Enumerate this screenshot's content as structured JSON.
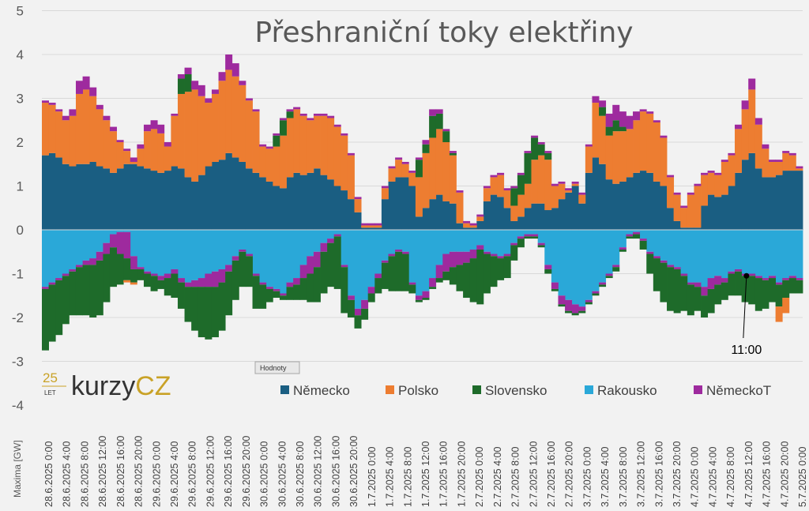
{
  "chart_data": {
    "type": "bar",
    "stacked": true,
    "title": "Přeshraniční toky elektřiny",
    "ylabel": "Maxima [GW]",
    "ylim": [
      -4,
      5
    ],
    "yticks": [
      -4,
      -3,
      -2,
      -1,
      0,
      1,
      2,
      3,
      4,
      5
    ],
    "grid": true,
    "legend_position": "bottom-right",
    "field_button": "Hodnoty",
    "annotation": {
      "text": "11:00",
      "x": "4.7.2025 11:00",
      "y": -1.05
    },
    "x_tick_labels": [
      "28.6.2025 0:00",
      "28.6.2025 4:00",
      "28.6.2025 8:00",
      "28.6.2025 12:00",
      "28.6.2025 16:00",
      "28.6.2025 20:00",
      "29.6.2025 0:00",
      "29.6.2025 4:00",
      "29.6.2025 8:00",
      "29.6.2025 12:00",
      "29.6.2025 16:00",
      "29.6.2025 20:00",
      "30.6.2025 0:00",
      "30.6.2025 4:00",
      "30.6.2025 8:00",
      "30.6.2025 12:00",
      "30.6.2025 16:00",
      "30.6.2025 20:00",
      "1.7.2025 0:00",
      "1.7.2025 4:00",
      "1.7.2025 8:00",
      "1.7.2025 12:00",
      "1.7.2025 16:00",
      "1.7.2025 20:00",
      "2.7.2025 0:00",
      "2.7.2025 4:00",
      "2.7.2025 8:00",
      "2.7.2025 12:00",
      "2.7.2025 16:00",
      "2.7.2025 20:00",
      "3.7.2025 0:00",
      "3.7.2025 4:00",
      "3.7.2025 8:00",
      "3.7.2025 12:00",
      "3.7.2025 16:00",
      "3.7.2025 20:00",
      "4.7.2025 0:00",
      "4.7.2025 4:00",
      "4.7.2025 8:00",
      "4.7.2025 12:00",
      "4.7.2025 16:00",
      "4.7.2025 20:00",
      "5.7.2025 0:00"
    ],
    "series": [
      {
        "name": "Německo",
        "color": "#1a5e82",
        "values": [
          1.7,
          1.75,
          1.65,
          1.5,
          1.45,
          1.5,
          1.5,
          1.55,
          1.45,
          1.4,
          1.3,
          1.4,
          1.5,
          1.5,
          1.45,
          1.4,
          1.35,
          1.3,
          1.35,
          1.45,
          1.4,
          1.2,
          1.1,
          1.25,
          1.45,
          1.55,
          1.6,
          1.75,
          1.65,
          1.55,
          1.4,
          1.3,
          1.2,
          1.1,
          1.0,
          0.95,
          1.2,
          1.3,
          1.25,
          1.3,
          1.4,
          1.25,
          1.15,
          1.0,
          0.9,
          0.7,
          0.4,
          0.05,
          0.05,
          0.05,
          0.7,
          1.1,
          1.2,
          1.2,
          1.0,
          0.3,
          0.5,
          0.7,
          0.8,
          0.65,
          0.6,
          0.15,
          0.05,
          0.05,
          0.2,
          0.65,
          0.8,
          0.75,
          0.5,
          0.2,
          0.3,
          0.5,
          0.6,
          0.6,
          0.45,
          0.5,
          0.7,
          0.85,
          1.0,
          0.6,
          1.3,
          1.65,
          1.5,
          1.15,
          1.05,
          1.1,
          1.2,
          1.3,
          1.35,
          1.3,
          1.1,
          1.0,
          0.5,
          0.2,
          0.05,
          0.05,
          0.05,
          0.55,
          0.8,
          0.75,
          0.8,
          1.0,
          1.3,
          1.6,
          1.75,
          1.4,
          1.2,
          1.2,
          1.25,
          1.35,
          1.35,
          1.35
        ]
      },
      {
        "name": "Polsko",
        "color": "#ed7d31",
        "values": [
          1.2,
          1.1,
          1.05,
          1.0,
          1.15,
          1.6,
          1.7,
          1.5,
          1.3,
          1.1,
          0.95,
          0.6,
          0.3,
          0.05,
          0.4,
          0.85,
          0.95,
          0.9,
          0.55,
          1.15,
          1.7,
          1.95,
          2.1,
          1.8,
          1.45,
          1.55,
          1.8,
          1.9,
          1.85,
          1.75,
          1.55,
          1.4,
          0.7,
          0.75,
          0.9,
          1.2,
          1.35,
          1.45,
          1.35,
          1.2,
          1.2,
          1.35,
          1.4,
          1.35,
          1.25,
          1.0,
          0.3,
          0.05,
          0.05,
          0.05,
          0.25,
          0.3,
          0.4,
          0.3,
          0.3,
          0.9,
          1.25,
          1.4,
          1.5,
          1.35,
          1.1,
          0.7,
          0.1,
          0.05,
          0.1,
          0.3,
          0.4,
          0.5,
          0.4,
          0.35,
          0.5,
          0.55,
          1.0,
          1.1,
          1.15,
          0.5,
          0.35,
          0.05,
          0.05,
          0.2,
          0.6,
          1.25,
          1.1,
          1.0,
          1.2,
          1.15,
          1.1,
          1.2,
          1.35,
          1.35,
          1.35,
          1.1,
          0.7,
          0.6,
          0.45,
          0.75,
          0.95,
          0.7,
          0.5,
          0.5,
          0.75,
          0.7,
          1.0,
          1.15,
          1.45,
          1.0,
          0.65,
          0.35,
          0.3,
          0.4,
          0.35,
          0.05
        ]
      },
      {
        "name": "Slovensko",
        "color": "#1e6b2a",
        "values": [
          0,
          0,
          0,
          0,
          0,
          0,
          0,
          0,
          0,
          0,
          0,
          0,
          0,
          0,
          0,
          0,
          0,
          0,
          0,
          0,
          0.35,
          0.4,
          0,
          0,
          0,
          0,
          0,
          0,
          0,
          0,
          0,
          0,
          0,
          0,
          0.25,
          0.35,
          0.15,
          0,
          0,
          0,
          0,
          0,
          0,
          0,
          0,
          0,
          0,
          0,
          0,
          0,
          0,
          0,
          0,
          0,
          0,
          0.4,
          0.2,
          0.5,
          0.35,
          0.25,
          0.05,
          0,
          0,
          0,
          0,
          0,
          0,
          0,
          0,
          0.4,
          0.45,
          0.7,
          0.5,
          0.25,
          0.15,
          0,
          0,
          0,
          0,
          0,
          0,
          0,
          0.2,
          0.2,
          0.25,
          0.1,
          0,
          0,
          0,
          0,
          0,
          0,
          0,
          0,
          0,
          0,
          0,
          0,
          0,
          0,
          0,
          0,
          0,
          0,
          0,
          0,
          0,
          0,
          0,
          0,
          0,
          0
        ]
      },
      {
        "name": "NěmeckoT",
        "color": "#9e2a9e",
        "values": [
          0.05,
          0.05,
          0.05,
          0.1,
          0.15,
          0.3,
          0.3,
          0.2,
          0.1,
          0.1,
          0.1,
          0.05,
          0.05,
          0.1,
          0.1,
          0.15,
          0.2,
          0.2,
          0.1,
          0.05,
          0.1,
          0.15,
          0.2,
          0.25,
          0.1,
          0.1,
          0.2,
          0.35,
          0.3,
          0.1,
          0.05,
          0.05,
          0.05,
          0.05,
          0.05,
          0.05,
          0.05,
          0.05,
          0.05,
          0.05,
          0.05,
          0.05,
          0.05,
          0.05,
          0.05,
          0.05,
          0.05,
          0.05,
          0.05,
          0.05,
          0.05,
          0.05,
          0.05,
          0.05,
          0.05,
          0.05,
          0.1,
          0.15,
          0.1,
          0.05,
          0.05,
          0.05,
          0.05,
          0.05,
          0.05,
          0.05,
          0.05,
          0.05,
          0.05,
          0.05,
          0.05,
          0.05,
          0.05,
          0.05,
          0.05,
          0.05,
          0.05,
          0.05,
          0.05,
          0.05,
          0.05,
          0.15,
          0.15,
          0.3,
          0.35,
          0.35,
          0.3,
          0.2,
          0.05,
          0.05,
          0.05,
          0.05,
          0.05,
          0.05,
          0.05,
          0.05,
          0.05,
          0.05,
          0.05,
          0.05,
          0.05,
          0.05,
          0.1,
          0.2,
          0.25,
          0.15,
          0.1,
          0.05,
          0.05,
          0.05,
          0.05,
          0.05
        ]
      },
      {
        "name": "Rakousko",
        "color": "#2aa8d8",
        "values": [
          -1.3,
          -1.2,
          -1.1,
          -1.0,
          -0.9,
          -0.8,
          -0.7,
          -0.65,
          -0.5,
          -0.3,
          -0.1,
          -0.05,
          -0.05,
          -0.6,
          -0.85,
          -0.95,
          -1.0,
          -1.05,
          -1.0,
          -0.9,
          -1.1,
          -1.2,
          -1.15,
          -1.1,
          -1.0,
          -0.95,
          -0.9,
          -0.8,
          -0.6,
          -0.45,
          -0.55,
          -1.0,
          -1.2,
          -1.3,
          -1.35,
          -1.45,
          -1.2,
          -1.1,
          -0.8,
          -0.6,
          -0.5,
          -0.3,
          -0.2,
          -0.1,
          -0.8,
          -1.5,
          -1.8,
          -1.6,
          -1.3,
          -1.0,
          -0.7,
          -0.55,
          -0.45,
          -0.5,
          -1.2,
          -1.5,
          -1.4,
          -1.1,
          -0.8,
          -0.55,
          -0.5,
          -0.5,
          -0.5,
          -0.45,
          -0.35,
          -0.5,
          -0.55,
          -0.6,
          -0.55,
          -0.3,
          -0.15,
          -0.1,
          -0.1,
          -0.3,
          -0.8,
          -1.2,
          -1.5,
          -1.6,
          -1.7,
          -1.75,
          -1.6,
          -1.4,
          -1.2,
          -1.0,
          -0.8,
          -0.4,
          -0.1,
          -0.05,
          -0.2,
          -0.5,
          -0.6,
          -0.7,
          -0.8,
          -0.85,
          -1.0,
          -1.2,
          -1.2,
          -1.3,
          -1.1,
          -1.05,
          -1.1,
          -0.95,
          -0.9,
          -1.0,
          -1.0,
          -1.05,
          -1.1,
          -1.05,
          -1.2,
          -1.1,
          -1.05,
          -1.1
        ]
      },
      {
        "name": "NěmeckoT",
        "color": "#9e2a9e",
        "values": [
          -0.05,
          -0.05,
          -0.05,
          -0.05,
          -0.05,
          -0.05,
          -0.1,
          -0.15,
          -0.2,
          -0.25,
          -0.3,
          -0.5,
          -0.6,
          -0.3,
          -0.05,
          -0.05,
          -0.05,
          -0.1,
          -0.1,
          -0.1,
          -0.1,
          -0.1,
          -0.15,
          -0.2,
          -0.3,
          -0.35,
          -0.3,
          -0.15,
          -0.1,
          -0.05,
          -0.05,
          -0.05,
          -0.05,
          -0.05,
          -0.05,
          -0.05,
          -0.1,
          -0.15,
          -0.3,
          -0.4,
          -0.35,
          -0.2,
          -0.1,
          -0.05,
          -0.05,
          -0.1,
          -0.15,
          -0.2,
          -0.15,
          -0.1,
          -0.05,
          -0.05,
          -0.05,
          -0.05,
          -0.05,
          -0.1,
          -0.15,
          -0.2,
          -0.3,
          -0.4,
          -0.35,
          -0.3,
          -0.25,
          -0.2,
          -0.1,
          -0.05,
          -0.05,
          -0.05,
          -0.05,
          -0.05,
          -0.05,
          -0.05,
          -0.05,
          -0.05,
          -0.1,
          -0.15,
          -0.2,
          -0.25,
          -0.2,
          -0.1,
          -0.05,
          -0.05,
          -0.05,
          -0.05,
          -0.05,
          -0.05,
          -0.05,
          -0.05,
          -0.05,
          -0.05,
          -0.05,
          -0.05,
          -0.05,
          -0.05,
          -0.05,
          -0.05,
          -0.1,
          -0.2,
          -0.25,
          -0.2,
          -0.1,
          -0.05,
          -0.05,
          -0.05,
          -0.05,
          -0.05,
          -0.05,
          -0.05,
          -0.05,
          -0.05,
          -0.05,
          -0.05
        ]
      },
      {
        "name": "Slovensko",
        "color": "#1e6b2a",
        "values": [
          -1.4,
          -1.3,
          -1.25,
          -1.1,
          -1.0,
          -1.1,
          -1.15,
          -1.2,
          -1.25,
          -1.1,
          -0.9,
          -0.7,
          -0.5,
          -0.3,
          -0.25,
          -0.3,
          -0.35,
          -0.2,
          -0.4,
          -0.55,
          -0.6,
          -0.8,
          -1.0,
          -1.15,
          -1.2,
          -1.15,
          -1.1,
          -1.0,
          -0.9,
          -0.8,
          -0.7,
          -0.75,
          -0.55,
          -0.3,
          -0.15,
          -0.1,
          -0.3,
          -0.35,
          -0.5,
          -0.65,
          -0.8,
          -0.95,
          -1.0,
          -1.2,
          -1.05,
          -0.4,
          -0.3,
          -0.25,
          -0.2,
          -0.35,
          -0.6,
          -0.8,
          -0.9,
          -0.85,
          -0.2,
          -0.05,
          -0.05,
          -0.05,
          -0.1,
          -0.2,
          -0.4,
          -0.6,
          -0.8,
          -1.0,
          -1.25,
          -0.9,
          -0.7,
          -0.5,
          -0.5,
          -0.35,
          -0.2,
          -0.05,
          -0.05,
          -0.05,
          -0.1,
          -0.05,
          -0.05,
          -0.05,
          -0.05,
          -0.05,
          -0.05,
          -0.05,
          -0.05,
          -0.05,
          -0.1,
          -0.05,
          -0.05,
          -0.1,
          -0.2,
          -0.45,
          -0.75,
          -0.9,
          -1.0,
          -1.0,
          -0.8,
          -0.7,
          -0.55,
          -0.5,
          -0.55,
          -0.45,
          -0.4,
          -0.5,
          -0.55,
          -0.6,
          -0.65,
          -0.75,
          -0.65,
          -0.55,
          -0.5,
          -0.4,
          -0.35,
          -0.3
        ]
      },
      {
        "name": "Polsko",
        "color": "#ed7d31",
        "values": [
          0,
          0,
          0,
          0,
          0,
          0,
          0,
          0,
          0,
          0,
          0,
          0,
          -0.05,
          -0.05,
          0,
          0,
          0,
          0,
          0,
          0,
          0,
          0,
          0,
          0,
          0,
          0,
          0,
          0,
          0,
          0,
          0,
          0,
          0,
          0,
          0,
          0,
          0,
          0,
          0,
          0,
          0,
          0,
          0,
          0,
          0,
          0,
          0,
          0,
          0,
          0,
          0,
          0,
          0,
          0,
          0,
          0,
          0,
          0,
          0,
          0,
          0,
          0,
          0,
          0,
          0,
          0,
          0,
          0,
          0,
          0,
          0,
          0,
          0,
          0,
          0,
          0,
          0,
          0,
          0,
          0,
          0,
          0,
          0,
          0,
          0,
          0,
          0,
          0,
          0,
          0,
          0,
          0,
          0,
          0,
          0,
          0,
          0,
          0,
          0,
          0,
          0,
          0,
          0,
          0,
          0,
          0,
          0,
          0,
          -0.35,
          -0.35,
          0,
          0
        ]
      }
    ],
    "legend": [
      {
        "name": "Německo",
        "color": "#1a5e82"
      },
      {
        "name": "Polsko",
        "color": "#ed7d31"
      },
      {
        "name": "Slovensko",
        "color": "#1e6b2a"
      },
      {
        "name": "Rakousko",
        "color": "#2aa8d8"
      },
      {
        "name": "NěmeckoT",
        "color": "#9e2a9e"
      }
    ]
  },
  "logo": {
    "badge_num": "25",
    "badge_word": "LET",
    "brand": "kurzy",
    "brand_suffix": "CZ"
  }
}
